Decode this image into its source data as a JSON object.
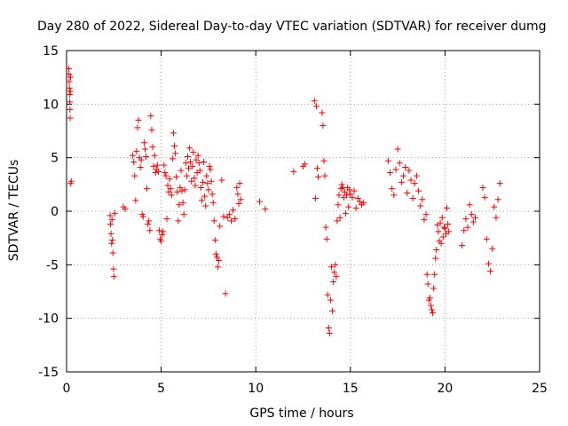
{
  "chart_data": {
    "type": "scatter",
    "title": "Day 280 of 2022, Sidereal Day-to-day VTEC variation (SDTVAR) for receiver dumg",
    "xlabel": "GPS time / hours",
    "ylabel": "SDTVAR / TECUs",
    "xlim": [
      0,
      25
    ],
    "ylim": [
      -15,
      15
    ],
    "x_ticks": [
      0,
      5,
      10,
      15,
      20,
      25
    ],
    "y_ticks": [
      -15,
      -10,
      -5,
      0,
      5,
      10,
      15
    ],
    "x_tick_labels": [
      "0",
      "5",
      "10",
      "15",
      "20",
      "25"
    ],
    "y_tick_labels": [
      "-15",
      "-10",
      "-5",
      "0",
      "5",
      "10",
      "15"
    ],
    "grid": true,
    "marker": "plus",
    "color": "#ff0000",
    "series": [
      {
        "name": "SDTVAR",
        "x": [
          0.12,
          0.13,
          0.14,
          0.15,
          0.16,
          0.17,
          0.18,
          0.19,
          0.2,
          0.21,
          0.22,
          0.25,
          2.3,
          2.32,
          2.35,
          2.38,
          2.4,
          2.42,
          2.45,
          2.48,
          2.5,
          2.55,
          3.0,
          3.1,
          3.5,
          3.55,
          3.6,
          3.65,
          3.7,
          3.75,
          3.8,
          3.85,
          3.9,
          3.95,
          4.0,
          4.05,
          4.1,
          4.15,
          4.2,
          4.25,
          4.3,
          4.35,
          4.4,
          4.45,
          4.5,
          4.55,
          4.6,
          4.65,
          4.7,
          4.75,
          4.8,
          4.85,
          4.9,
          4.95,
          5.0,
          5.05,
          5.1,
          5.15,
          5.2,
          5.25,
          5.3,
          5.35,
          5.4,
          5.45,
          5.5,
          5.55,
          5.6,
          5.65,
          5.7,
          5.75,
          5.8,
          5.85,
          5.9,
          5.95,
          6.0,
          6.05,
          6.1,
          6.15,
          6.2,
          6.25,
          6.3,
          6.35,
          6.4,
          6.45,
          6.5,
          6.55,
          6.6,
          6.65,
          6.7,
          6.75,
          6.8,
          6.85,
          6.9,
          6.95,
          7.0,
          7.05,
          7.1,
          7.15,
          7.2,
          7.25,
          7.3,
          7.35,
          7.4,
          7.45,
          7.5,
          7.55,
          7.6,
          7.65,
          7.7,
          7.75,
          7.8,
          7.85,
          7.9,
          7.95,
          8.0,
          8.05,
          8.1,
          8.2,
          8.3,
          8.4,
          8.5,
          8.6,
          8.7,
          8.8,
          8.9,
          9.0,
          9.05,
          9.1,
          9.15,
          9.2,
          10.2,
          10.5,
          12.0,
          12.5,
          12.6,
          13.1,
          13.15,
          13.2,
          13.25,
          13.3,
          13.5,
          13.55,
          13.6,
          13.65,
          13.7,
          13.75,
          13.8,
          13.85,
          13.9,
          13.95,
          14.0,
          14.05,
          14.1,
          14.15,
          14.2,
          14.25,
          14.3,
          14.35,
          14.4,
          14.45,
          14.5,
          14.55,
          14.6,
          14.65,
          14.7,
          14.75,
          14.8,
          14.85,
          14.9,
          14.95,
          15.0,
          15.1,
          15.2,
          15.3,
          15.4,
          15.5,
          15.6,
          15.7,
          17.0,
          17.1,
          17.2,
          17.3,
          17.4,
          17.5,
          17.6,
          17.7,
          17.8,
          17.9,
          18.0,
          18.1,
          18.2,
          18.3,
          18.4,
          18.5,
          18.6,
          18.7,
          18.8,
          18.9,
          19.0,
          19.05,
          19.1,
          19.15,
          19.2,
          19.25,
          19.3,
          19.35,
          19.4,
          19.45,
          19.5,
          19.55,
          19.6,
          19.65,
          19.7,
          19.75,
          19.8,
          19.85,
          19.9,
          19.95,
          20.0,
          20.05,
          20.1,
          20.15,
          20.2,
          20.9,
          21.0,
          21.1,
          21.2,
          21.3,
          21.4,
          21.5,
          21.6,
          22.0,
          22.1,
          22.2,
          22.3,
          22.4,
          22.5,
          22.6,
          22.7,
          22.8,
          22.9
        ],
        "y": [
          13.3,
          12.8,
          12.1,
          11.5,
          10.9,
          10.2,
          9.5,
          8.7,
          11.2,
          12.5,
          2.6,
          2.8,
          -0.4,
          -1.2,
          -2.1,
          -3.0,
          -0.8,
          -2.7,
          -3.9,
          -5.4,
          -6.1,
          -0.2,
          0.4,
          0.2,
          5.2,
          4.6,
          3.3,
          1.0,
          5.6,
          7.8,
          8.5,
          5.0,
          4.1,
          4.8,
          -0.3,
          -0.5,
          6.4,
          5.8,
          5.1,
          2.1,
          -1.2,
          -0.9,
          -1.8,
          8.9,
          7.6,
          6.0,
          4.2,
          5.2,
          3.6,
          3.9,
          4.3,
          3.7,
          -1.8,
          -2.6,
          -2.8,
          -2.2,
          -1.9,
          4.3,
          3.6,
          3.3,
          -0.7,
          2.4,
          1.8,
          3.0,
          2.1,
          1.5,
          4.9,
          7.3,
          6.1,
          5.4,
          3.2,
          1.8,
          -0.9,
          0.6,
          2.2,
          3.8,
          1.9,
          0.8,
          -0.3,
          2.0,
          4.5,
          3.3,
          5.1,
          4.0,
          5.9,
          4.6,
          2.8,
          4.2,
          5.5,
          3.1,
          2.4,
          4.8,
          3.6,
          5.2,
          4.5,
          3.8,
          2.2,
          1.0,
          2.7,
          4.6,
          1.4,
          0.5,
          3.3,
          2.6,
          2.0,
          4.2,
          3.9,
          2.8,
          1.6,
          0.8,
          -0.9,
          -2.7,
          -4.0,
          -4.3,
          -5.2,
          -4.6,
          -1.4,
          2.9,
          -0.5,
          -7.7,
          -0.6,
          -0.3,
          -0.9,
          0.1,
          -0.7,
          2.2,
          1.6,
          0.7,
          2.6,
          1.1,
          0.9,
          0.2,
          3.7,
          4.2,
          4.4,
          10.3,
          1.2,
          9.8,
          4.0,
          3.2,
          9.2,
          8.0,
          4.7,
          3.3,
          -1.5,
          -2.6,
          -7.8,
          -10.9,
          -11.4,
          -8.3,
          -5.2,
          -9.3,
          -6.6,
          -5.7,
          -5.0,
          -6.1,
          -0.9,
          0.6,
          1.5,
          -0.6,
          2.1,
          2.5,
          2.2,
          1.3,
          1.8,
          -0.2,
          1.5,
          2.2,
          0.4,
          2.0,
          1.6,
          1.3,
          1.9,
          0.3,
          1.2,
          0.9,
          0.6,
          0.8,
          4.7,
          3.6,
          2.1,
          1.5,
          3.9,
          5.8,
          4.5,
          2.7,
          3.3,
          4.1,
          1.7,
          3.8,
          2.9,
          1.2,
          2.6,
          3.3,
          1.9,
          0.5,
          1.1,
          -0.8,
          -0.3,
          -5.9,
          -6.8,
          -8.3,
          -8.1,
          -8.8,
          -9.2,
          -9.5,
          -7.2,
          -5.9,
          -4.4,
          -3.6,
          -1.3,
          -1.9,
          -2.8,
          -1.1,
          -3.0,
          -0.6,
          -2.4,
          -1.5,
          -1.6,
          -2.1,
          0.3,
          -1.2,
          -1.9,
          -3.2,
          -1.8,
          -0.7,
          -1.5,
          0.6,
          -0.3,
          -1.0,
          -0.6,
          2.2,
          1.3,
          -2.6,
          -4.9,
          -5.6,
          -3.5,
          0.4,
          -0.6,
          1.1,
          2.6
        ]
      }
    ]
  }
}
